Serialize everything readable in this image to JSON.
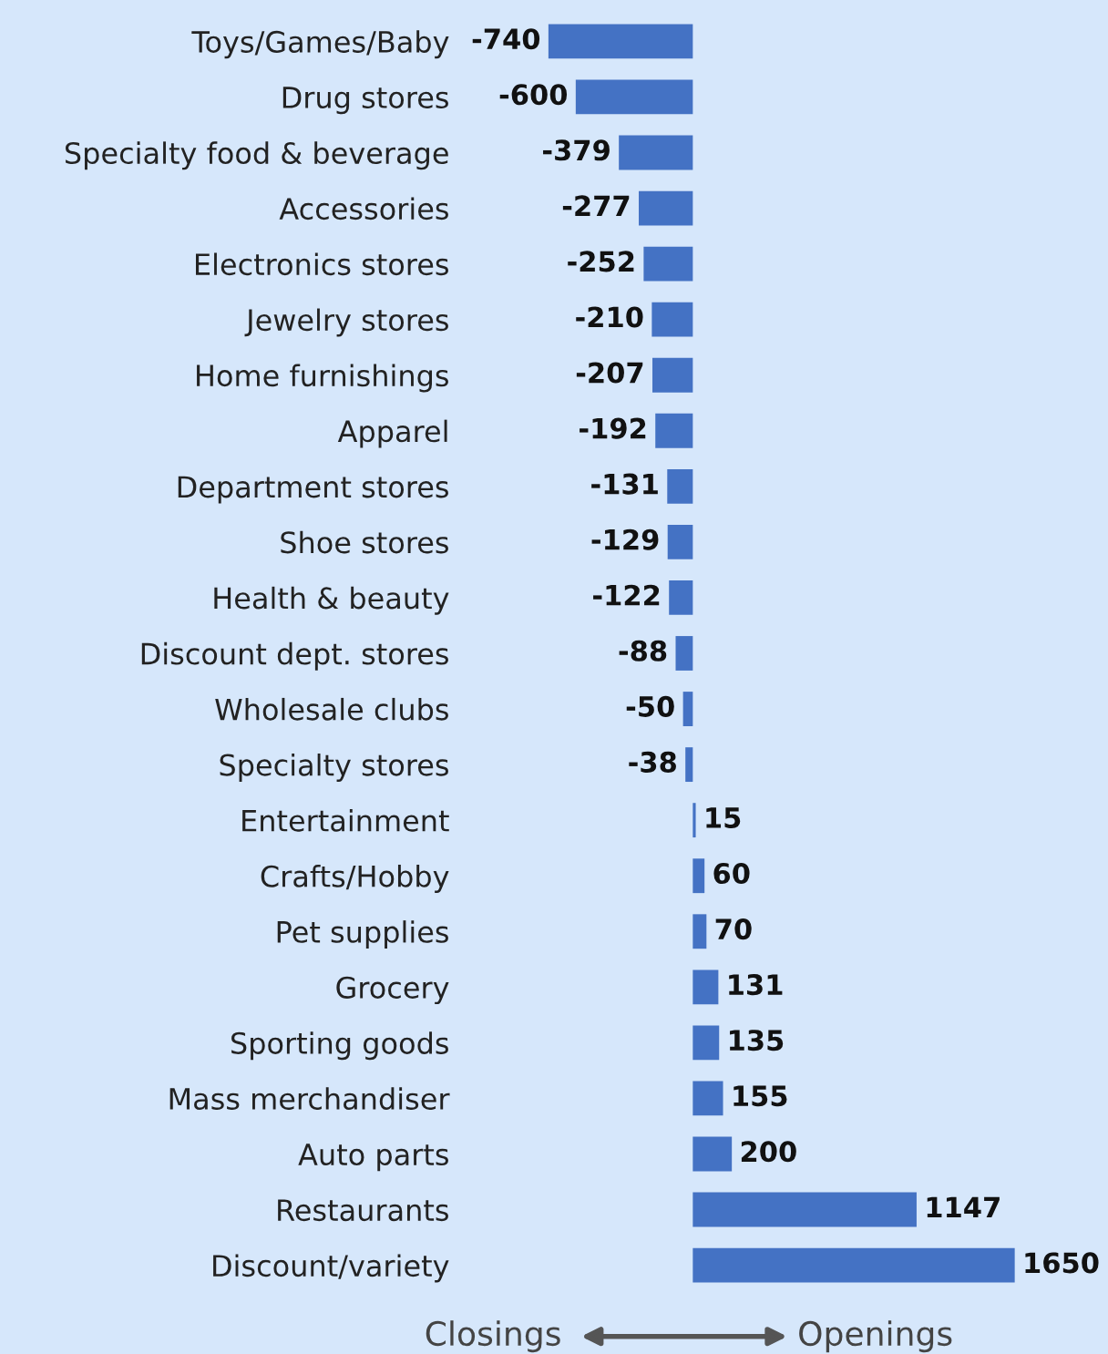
{
  "chart_data": {
    "type": "bar",
    "orientation": "horizontal",
    "data_labels": true,
    "grid": false,
    "legend": false,
    "color": "#4472c4",
    "categories": [
      "Toys/Games/Baby",
      "Drug stores",
      "Specialty food & beverage",
      "Accessories",
      "Electronics stores",
      "Jewelry stores",
      "Home furnishings",
      "Apparel",
      "Department stores",
      "Shoe stores",
      "Health & beauty",
      "Discount dept. stores",
      "Wholesale clubs",
      "Specialty stores",
      "Entertainment",
      "Crafts/Hobby",
      "Pet supplies",
      "Grocery",
      "Sporting goods",
      "Mass merchandiser",
      "Auto parts",
      "Restaurants",
      "Discount/variety"
    ],
    "values": [
      -740,
      -600,
      -379,
      -277,
      -252,
      -210,
      -207,
      -192,
      -131,
      -129,
      -122,
      -88,
      -50,
      -38,
      15,
      60,
      70,
      131,
      135,
      155,
      200,
      1147,
      1650
    ],
    "annotations": [
      "Closings",
      "Openings"
    ]
  }
}
